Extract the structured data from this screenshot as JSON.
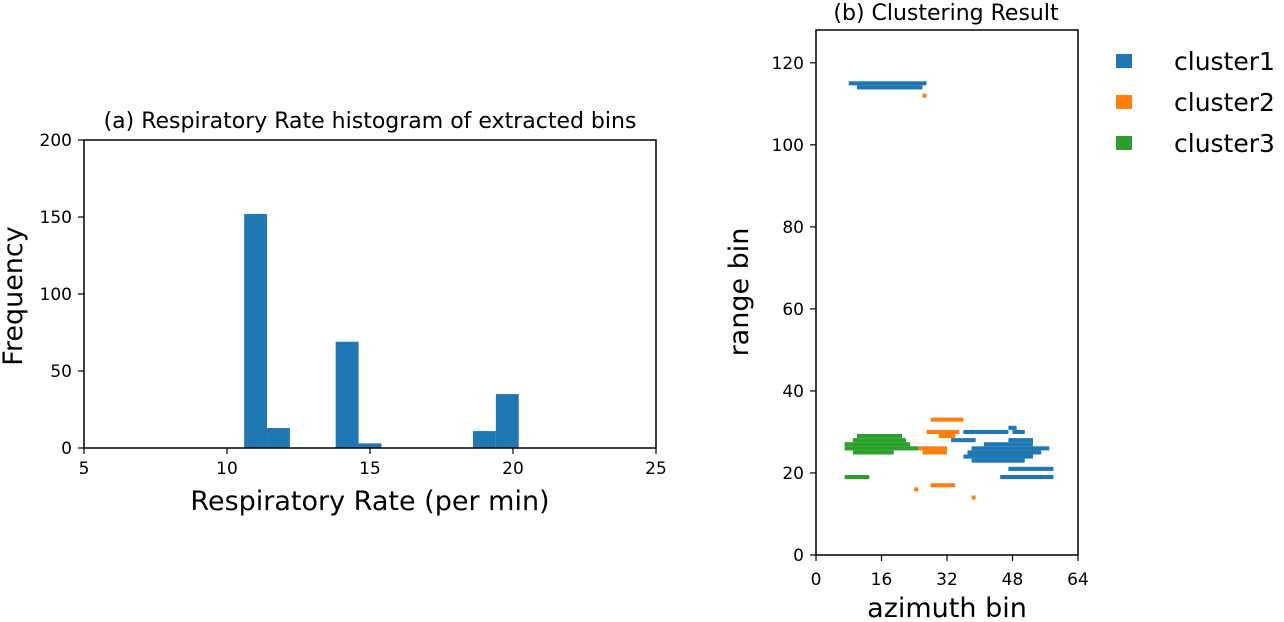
{
  "chart_data": [
    {
      "type": "bar",
      "title": "(a) Respiratory Rate histogram of extracted bins",
      "xlabel": "Respiratory Rate (per min)",
      "ylabel": "Frequency",
      "xlim": [
        5,
        25
      ],
      "ylim": [
        0,
        200
      ],
      "xticks": [
        5,
        10,
        15,
        20,
        25
      ],
      "yticks": [
        0,
        50,
        100,
        150,
        200
      ],
      "bin_width": 0.8,
      "bins": [
        {
          "start": 10.6,
          "value": 152
        },
        {
          "start": 11.4,
          "value": 13
        },
        {
          "start": 13.8,
          "value": 69
        },
        {
          "start": 14.6,
          "value": 3
        },
        {
          "start": 18.6,
          "value": 11
        },
        {
          "start": 19.4,
          "value": 35
        }
      ],
      "color": "#1f77b4"
    },
    {
      "type": "scatter",
      "title": "(b) Clustering Result",
      "xlabel": "azimuth bin",
      "ylabel": "range bin",
      "xlim": [
        0,
        64
      ],
      "ylim": [
        0,
        128
      ],
      "xticks": [
        0,
        16,
        32,
        48,
        64
      ],
      "yticks": [
        0,
        20,
        40,
        60,
        80,
        100,
        120
      ],
      "legend": "outside-right",
      "series": [
        {
          "name": "cluster1",
          "color": "#1f77b4",
          "segments": [
            {
              "y": 115,
              "x0": 8,
              "x1": 27
            },
            {
              "y": 114,
              "x0": 10,
              "x1": 26
            },
            {
              "y": 30,
              "x0": 36,
              "x1": 47
            },
            {
              "y": 31,
              "x0": 47,
              "x1": 49
            },
            {
              "y": 30,
              "x0": 48,
              "x1": 51
            },
            {
              "y": 28,
              "x0": 33,
              "x1": 39
            },
            {
              "y": 28,
              "x0": 47,
              "x1": 53
            },
            {
              "y": 27,
              "x0": 41,
              "x1": 53
            },
            {
              "y": 26,
              "x0": 38,
              "x1": 57
            },
            {
              "y": 25,
              "x0": 37,
              "x1": 55
            },
            {
              "y": 24,
              "x0": 36,
              "x1": 53
            },
            {
              "y": 23,
              "x0": 38,
              "x1": 51
            },
            {
              "y": 21,
              "x0": 47,
              "x1": 58
            },
            {
              "y": 19,
              "x0": 45,
              "x1": 58
            }
          ]
        },
        {
          "name": "cluster2",
          "color": "#ff7f0e",
          "segments": [
            {
              "y": 112,
              "x0": 26,
              "x1": 27
            },
            {
              "y": 33,
              "x0": 28,
              "x1": 36
            },
            {
              "y": 30,
              "x0": 27,
              "x1": 35
            },
            {
              "y": 29,
              "x0": 30,
              "x1": 34
            },
            {
              "y": 26,
              "x0": 25,
              "x1": 32
            },
            {
              "y": 25,
              "x0": 26,
              "x1": 32
            },
            {
              "y": 17,
              "x0": 28,
              "x1": 34
            },
            {
              "y": 16,
              "x0": 24,
              "x1": 25
            },
            {
              "y": 14,
              "x0": 38,
              "x1": 39
            }
          ]
        },
        {
          "name": "cluster3",
          "color": "#2ca02c",
          "segments": [
            {
              "y": 29,
              "x0": 10,
              "x1": 21
            },
            {
              "y": 28,
              "x0": 9,
              "x1": 22
            },
            {
              "y": 27,
              "x0": 7,
              "x1": 23
            },
            {
              "y": 26,
              "x0": 7,
              "x1": 25
            },
            {
              "y": 25,
              "x0": 9,
              "x1": 19
            },
            {
              "y": 19,
              "x0": 7,
              "x1": 13
            }
          ]
        }
      ]
    }
  ]
}
